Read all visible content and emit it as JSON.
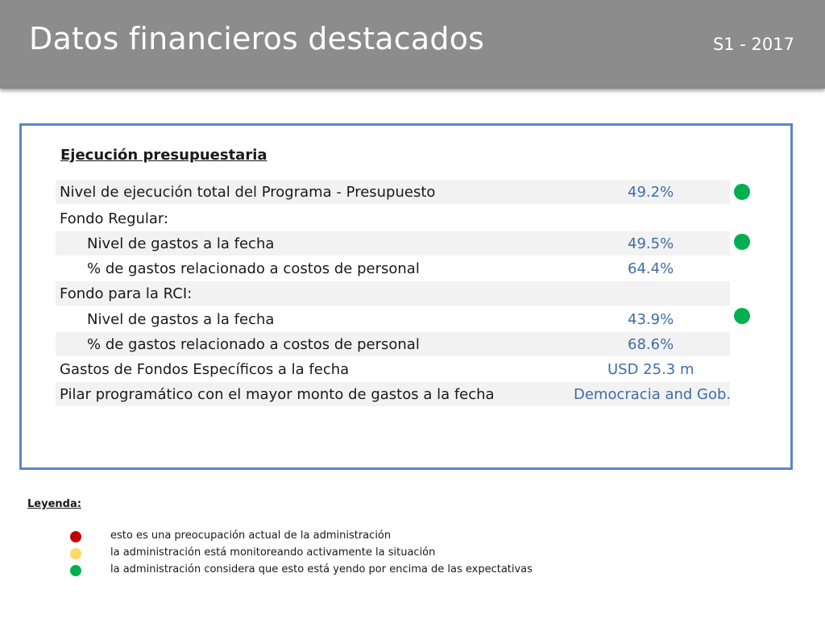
{
  "header": {
    "title": "Datos financieros destacados",
    "period": "S1 - 2017"
  },
  "panel": {
    "section_title": "Ejecución presupuestaria",
    "rows": [
      {
        "label": "Nivel de ejecución total del Programa - Presupuesto",
        "value": "49.2%",
        "status": "green"
      },
      {
        "label": "Fondo Regular:",
        "value": ""
      },
      {
        "label": "Nivel de gastos a la fecha",
        "value": "49.5%",
        "status": "green"
      },
      {
        "label": "% de gastos relacionado a costos de personal",
        "value": "64.4%"
      },
      {
        "label": "Fondo para la RCI:",
        "value": ""
      },
      {
        "label": "Nivel de gastos a la fecha",
        "value": "43.9%",
        "status": "green"
      },
      {
        "label": "% de gastos relacionado a costos de personal",
        "value": "68.6%"
      },
      {
        "label": "Gastos de Fondos Específicos a la fecha",
        "value": "USD 25.3 m"
      },
      {
        "label": "Pilar programático con el mayor monto de gastos a la fecha",
        "value": "Democracia and Gob."
      }
    ]
  },
  "legend": {
    "title": "Leyenda:",
    "items": [
      {
        "color": "red",
        "text": "esto es una preocupación actual de la administración"
      },
      {
        "color": "yellow",
        "text": "la administración está monitoreando activamente la situación"
      },
      {
        "color": "green",
        "text": "la administración considera que esto está yendo por encima de las expectativas"
      }
    ]
  },
  "colors": {
    "red": "#c00000",
    "yellow": "#ffd966",
    "green": "#00b050",
    "value_text": "#3e6ea8",
    "panel_border": "#5b87c0",
    "header_bg": "#8c8c8c"
  }
}
